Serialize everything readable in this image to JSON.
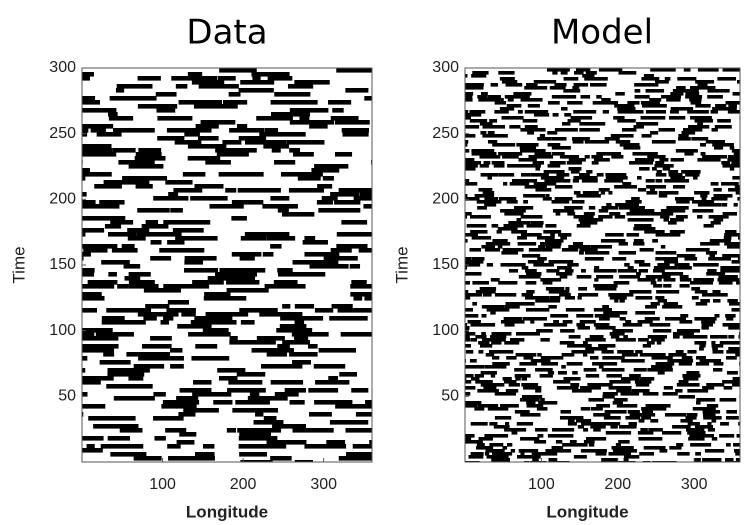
{
  "chart_data": [
    {
      "type": "heatmap",
      "title": "Data",
      "x_label": "Longitude",
      "y_label": "Time",
      "xlim": [
        0,
        360
      ],
      "ylim": [
        0,
        300
      ],
      "xticks": [
        100,
        200,
        300
      ],
      "yticks": [
        50,
        100,
        150,
        200,
        250,
        300
      ]
    },
    {
      "type": "heatmap",
      "title": "Model",
      "x_label": "Longitude",
      "y_label": "Time",
      "xlim": [
        0,
        360
      ],
      "ylim": [
        0,
        300
      ],
      "xticks": [
        100,
        200,
        300
      ],
      "yticks": [
        50,
        100,
        150,
        200,
        250,
        300
      ]
    }
  ]
}
